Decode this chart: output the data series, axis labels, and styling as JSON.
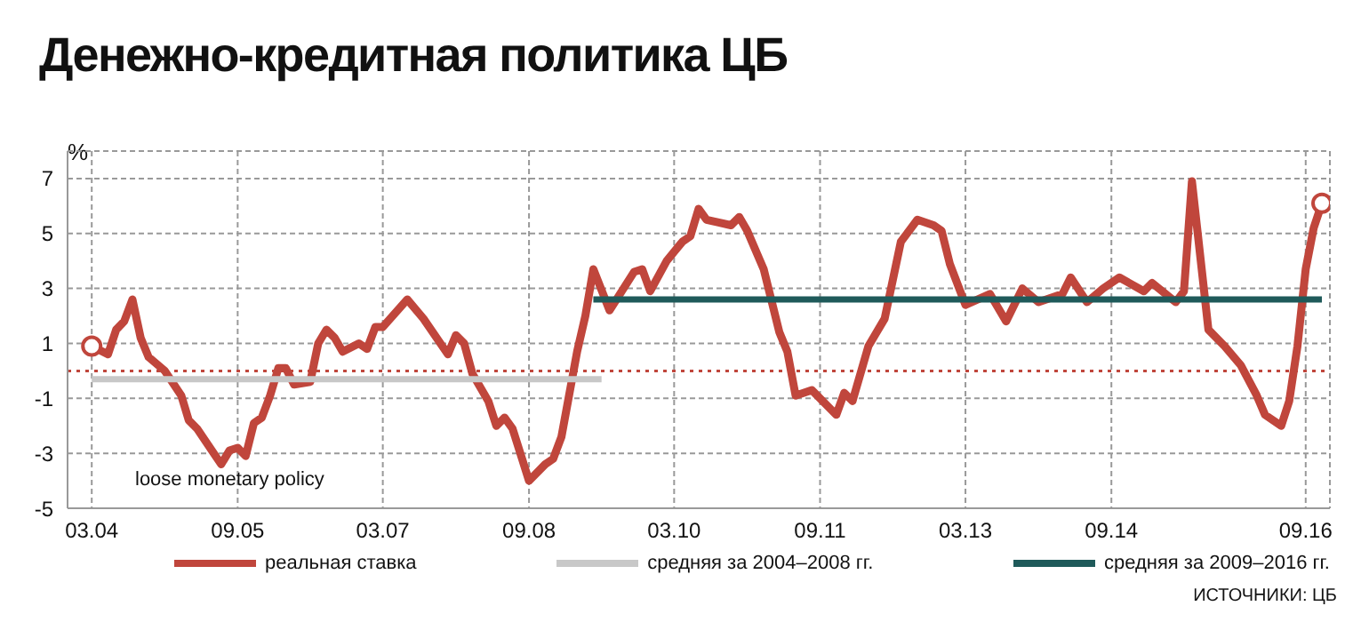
{
  "chart_data": {
    "type": "line",
    "title": "Денежно-кредитная политика ЦБ",
    "ylabel": "%",
    "xlim": [
      "2003-12",
      "2016-12"
    ],
    "xticks": [
      {
        "value": "2004-03",
        "label": "03.04"
      },
      {
        "value": "2005-09",
        "label": "09.05"
      },
      {
        "value": "2007-03",
        "label": "03.07"
      },
      {
        "value": "2008-09",
        "label": "09.08"
      },
      {
        "value": "2010-03",
        "label": "03.10"
      },
      {
        "value": "2011-09",
        "label": "09.11"
      },
      {
        "value": "2013-03",
        "label": "03.13"
      },
      {
        "value": "2014-09",
        "label": "09.14"
      },
      {
        "value": "2016-09",
        "label": "09.16"
      }
    ],
    "ylim": [
      -5,
      8
    ],
    "yticks": [
      -5,
      -3,
      -1,
      1,
      3,
      5,
      7
    ],
    "grid": true,
    "legend": "bottom",
    "series": [
      {
        "name": "реальная ставка",
        "color": "#c0463c",
        "x": [
          "2004-03",
          "2004-05",
          "2004-06",
          "2004-07",
          "2004-08",
          "2004-09",
          "2004-10",
          "2004-12",
          "2005-02",
          "2005-03",
          "2005-04",
          "2005-07",
          "2005-08",
          "2005-09",
          "2005-10",
          "2005-11",
          "2005-12",
          "2006-01",
          "2006-02",
          "2006-03",
          "2006-04",
          "2006-06",
          "2006-07",
          "2006-08",
          "2006-09",
          "2006-10",
          "2006-12",
          "2007-01",
          "2007-02",
          "2007-03",
          "2007-06",
          "2007-08",
          "2007-11",
          "2007-12",
          "2008-01",
          "2008-02",
          "2008-04",
          "2008-05",
          "2008-06",
          "2008-07",
          "2008-09",
          "2008-11",
          "2008-12",
          "2009-01",
          "2009-03",
          "2009-04",
          "2009-05",
          "2009-07",
          "2009-10",
          "2009-11",
          "2009-12",
          "2010-02",
          "2010-04",
          "2010-05",
          "2010-06",
          "2010-07",
          "2010-10",
          "2010-11",
          "2010-12",
          "2011-02",
          "2011-04",
          "2011-05",
          "2011-06",
          "2011-08",
          "2011-11",
          "2011-12",
          "2012-01",
          "2012-03",
          "2012-05",
          "2012-07",
          "2012-09",
          "2012-11",
          "2012-12",
          "2013-01",
          "2013-03",
          "2013-06",
          "2013-08",
          "2013-10",
          "2013-12",
          "2014-03",
          "2014-04",
          "2014-06",
          "2014-08",
          "2014-10",
          "2015-01",
          "2015-02",
          "2015-05",
          "2015-06",
          "2015-07",
          "2015-09",
          "2015-11",
          "2016-01",
          "2016-03",
          "2016-04",
          "2016-06",
          "2016-07",
          "2016-08",
          "2016-09",
          "2016-10",
          "2016-11"
        ],
        "values": [
          0.9,
          0.6,
          1.5,
          1.8,
          2.6,
          1.2,
          0.5,
          0.0,
          -0.9,
          -1.8,
          -2.1,
          -3.4,
          -2.9,
          -2.8,
          -3.1,
          -1.9,
          -1.7,
          -0.9,
          0.1,
          0.1,
          -0.5,
          -0.4,
          1.0,
          1.5,
          1.2,
          0.7,
          1.0,
          0.8,
          1.6,
          1.6,
          2.6,
          1.9,
          0.6,
          1.3,
          1.0,
          -0.1,
          -1.1,
          -2.0,
          -1.7,
          -2.1,
          -4.0,
          -3.4,
          -3.2,
          -2.4,
          0.7,
          2.0,
          3.7,
          2.2,
          3.6,
          3.7,
          2.9,
          4.0,
          4.7,
          4.9,
          5.9,
          5.5,
          5.3,
          5.6,
          5.1,
          3.7,
          1.4,
          0.7,
          -0.9,
          -0.7,
          -1.6,
          -0.8,
          -1.1,
          0.9,
          1.9,
          4.7,
          5.5,
          5.3,
          5.1,
          3.9,
          2.4,
          2.8,
          1.8,
          3.0,
          2.5,
          2.8,
          3.4,
          2.5,
          3.0,
          3.4,
          2.9,
          3.2,
          2.5,
          2.9,
          6.9,
          1.5,
          0.9,
          0.2,
          -0.9,
          -1.6,
          -2.0,
          -1.1,
          0.9,
          3.7,
          5.2,
          6.1
        ]
      },
      {
        "name": "средняя за 2004–2008 гг.",
        "color": "#c8c8c8",
        "x": [
          "2004-03",
          "2009-06"
        ],
        "values": [
          -0.3,
          -0.3
        ]
      },
      {
        "name": "средняя за 2009–2016 гг.",
        "color": "#1f5a5a",
        "x": [
          "2009-05",
          "2016-11"
        ],
        "values": [
          2.6,
          2.6
        ]
      }
    ],
    "ref_lines": [
      {
        "axis": "y",
        "value": 0,
        "color": "#c0463c",
        "line_style": "dotted"
      }
    ],
    "annotations": [
      "loose monetary policy",
      "ИСТОЧНИКИ: ЦБ"
    ]
  }
}
